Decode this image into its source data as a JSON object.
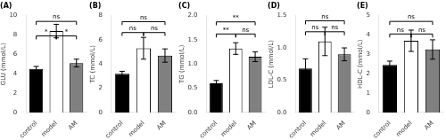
{
  "chart_data": [
    {
      "type": "bar",
      "title": "(A)",
      "ylabel": "GLU (mmol/L)",
      "categories": [
        "control",
        "model",
        "AM"
      ],
      "values": [
        4.5,
        8.4,
        5.1
      ],
      "errors": [
        0.25,
        0.7,
        0.4
      ],
      "colors": [
        "black",
        "white",
        "gray"
      ],
      "ylim": [
        0,
        10
      ],
      "yticks": [
        0,
        2,
        4,
        6,
        8,
        10
      ],
      "grid": false,
      "annotations": [
        {
          "from": "control",
          "to": "AM",
          "y": 9.4,
          "drop": 0.35,
          "label": "ns"
        },
        {
          "from": "control",
          "to": "model",
          "y": 7.9,
          "drop": 0.35,
          "label": "*"
        },
        {
          "from": "model",
          "to": "AM",
          "y": 7.9,
          "drop": 0.35,
          "label": "*"
        }
      ]
    },
    {
      "type": "bar",
      "title": "(B)",
      "ylabel": "TC (mmol/L)",
      "categories": [
        "control",
        "model",
        "AM"
      ],
      "values": [
        3.2,
        5.3,
        4.7
      ],
      "errors": [
        0.2,
        0.9,
        0.55
      ],
      "colors": [
        "black",
        "white",
        "gray"
      ],
      "ylim": [
        0,
        8
      ],
      "yticks": [
        0,
        2,
        4,
        6,
        8
      ],
      "grid": false,
      "annotations": [
        {
          "from": "control",
          "to": "AM",
          "y": 7.5,
          "drop": 0.28,
          "label": "ns"
        },
        {
          "from": "control",
          "to": "model",
          "y": 6.6,
          "drop": 0.28,
          "label": "ns"
        },
        {
          "from": "model",
          "to": "AM",
          "y": 6.6,
          "drop": 0.28,
          "label": "ns"
        }
      ]
    },
    {
      "type": "bar",
      "title": "(C)",
      "ylabel": "TG (mmol/L)",
      "categories": [
        "control",
        "model",
        "AM"
      ],
      "values": [
        0.6,
        1.32,
        1.15
      ],
      "errors": [
        0.06,
        0.12,
        0.1
      ],
      "colors": [
        "black",
        "white",
        "gray"
      ],
      "ylim": [
        0,
        2.0
      ],
      "yticks": [
        {
          "value": 0,
          "label": "0.0"
        },
        0.5,
        {
          "value": 1.0,
          "label": "1.0"
        },
        1.5,
        {
          "value": 2.0,
          "label": "2.0"
        }
      ],
      "grid": false,
      "annotations": [
        {
          "from": "control",
          "to": "AM",
          "y": 1.87,
          "drop": 0.07,
          "label": "**"
        },
        {
          "from": "control",
          "to": "model",
          "y": 1.62,
          "drop": 0.07,
          "label": "**"
        },
        {
          "from": "model",
          "to": "AM",
          "y": 1.62,
          "drop": 0.07,
          "label": "ns"
        }
      ]
    },
    {
      "type": "bar",
      "title": "(D)",
      "ylabel": "LDL-C (mmol/L)",
      "categories": [
        "control",
        "model",
        "AM"
      ],
      "values": [
        0.68,
        1.1,
        0.9
      ],
      "errors": [
        0.15,
        0.22,
        0.1
      ],
      "colors": [
        "black",
        "white",
        "gray"
      ],
      "ylim": [
        0,
        1.5
      ],
      "yticks": [
        {
          "value": 0,
          "label": "0.0"
        },
        0.5,
        {
          "value": 1.0,
          "label": "1.0"
        },
        1.5
      ],
      "grid": false,
      "annotations": [
        {
          "from": "control",
          "to": "AM",
          "y": 1.42,
          "drop": 0.055,
          "label": "ns"
        },
        {
          "from": "control",
          "to": "model",
          "y": 1.25,
          "drop": 0.055,
          "label": "ns"
        },
        {
          "from": "model",
          "to": "AM",
          "y": 1.25,
          "drop": 0.055,
          "label": "ns"
        }
      ]
    },
    {
      "type": "bar",
      "title": "(E)",
      "ylabel": "HDL-C (mmol/L)",
      "categories": [
        "control",
        "model",
        "AM"
      ],
      "values": [
        2.45,
        3.7,
        3.25
      ],
      "errors": [
        0.2,
        0.55,
        0.5
      ],
      "colors": [
        "black",
        "white",
        "gray"
      ],
      "ylim": [
        0,
        5
      ],
      "yticks": [
        0,
        1,
        2,
        3,
        4,
        5
      ],
      "grid": false,
      "annotations": [
        {
          "from": "control",
          "to": "AM",
          "y": 4.7,
          "drop": 0.18,
          "label": "ns"
        },
        {
          "from": "control",
          "to": "model",
          "y": 4.05,
          "drop": 0.18,
          "label": "ns"
        },
        {
          "from": "model",
          "to": "AM",
          "y": 4.05,
          "drop": 0.18,
          "label": "ns"
        }
      ]
    }
  ]
}
